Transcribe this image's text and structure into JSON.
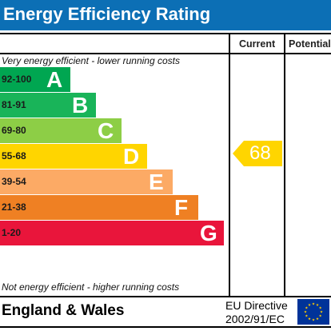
{
  "header": {
    "title": "Energy Efficiency Rating"
  },
  "columns": {
    "current": "Current",
    "potential": "Potential"
  },
  "captions": {
    "top": "Very energy efficient - lower running costs",
    "bottom": "Not energy efficient - higher running costs"
  },
  "footer": {
    "region": "England & Wales",
    "directive_line1": "EU Directive",
    "directive_line2": "2002/91/EC"
  },
  "chart_data": {
    "type": "bar",
    "title": "Energy Efficiency Rating",
    "bands": [
      {
        "label": "92-100",
        "letter": "A",
        "min": 92,
        "max": 100,
        "color": "#00a651"
      },
      {
        "label": "81-91",
        "letter": "B",
        "min": 81,
        "max": 91,
        "color": "#19b459"
      },
      {
        "label": "69-80",
        "letter": "C",
        "min": 69,
        "max": 80,
        "color": "#8dce46"
      },
      {
        "label": "55-68",
        "letter": "D",
        "min": 55,
        "max": 68,
        "color": "#ffd500"
      },
      {
        "label": "39-54",
        "letter": "E",
        "min": 39,
        "max": 54,
        "color": "#fcaa65"
      },
      {
        "label": "21-38",
        "letter": "F",
        "min": 21,
        "max": 38,
        "color": "#ef8023"
      },
      {
        "label": "1-20",
        "letter": "G",
        "min": 1,
        "max": 20,
        "color": "#e9153b"
      }
    ],
    "current": {
      "value": 68,
      "band": "D",
      "color": "#ffd500"
    },
    "potential": null
  },
  "icons": {
    "eu_flag": "eu-flag-icon"
  },
  "colors": {
    "title_bar": "#0c6fb5",
    "eu_flag_bg": "#003399",
    "eu_flag_star": "#ffcc00"
  }
}
